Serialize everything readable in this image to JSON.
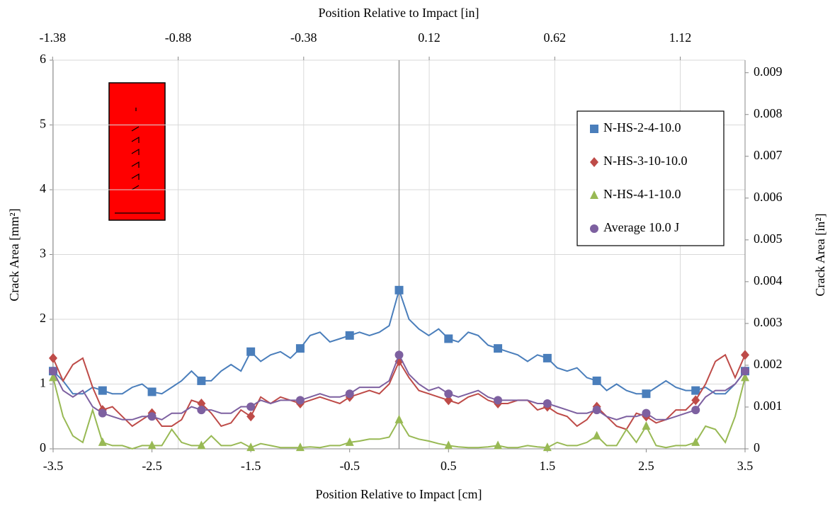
{
  "chart_data": {
    "type": "line",
    "x_label": "Position Relative to Impact [cm]",
    "x2_label": "Position Relative to Impact [in]",
    "y_label": "Crack Area [mm²]",
    "y2_label": "Crack Area [in²]",
    "x": [
      -3.5,
      -3.4,
      -3.3,
      -3.2,
      -3.1,
      -3.0,
      -2.9,
      -2.8,
      -2.7,
      -2.6,
      -2.5,
      -2.4,
      -2.3,
      -2.2,
      -2.1,
      -2.0,
      -1.9,
      -1.8,
      -1.7,
      -1.6,
      -1.5,
      -1.4,
      -1.3,
      -1.2,
      -1.1,
      -1.0,
      -0.9,
      -0.8,
      -0.7,
      -0.6,
      -0.5,
      -0.4,
      -0.3,
      -0.2,
      -0.1,
      0,
      0.1,
      0.2,
      0.3,
      0.4,
      0.5,
      0.6,
      0.7,
      0.8,
      0.9,
      1.0,
      1.1,
      1.2,
      1.3,
      1.4,
      1.5,
      1.6,
      1.7,
      1.8,
      1.9,
      2.0,
      2.1,
      2.2,
      2.3,
      2.4,
      2.5,
      2.6,
      2.7,
      2.8,
      2.9,
      3.0,
      3.1,
      3.2,
      3.3,
      3.4,
      3.5
    ],
    "series": [
      {
        "name": "N-HS-2-4-10.0",
        "color": "#4a7ebb",
        "marker": "square",
        "values": [
          1.2,
          1.05,
          0.85,
          0.85,
          0.95,
          0.9,
          0.85,
          0.85,
          0.95,
          1.0,
          0.88,
          0.85,
          0.95,
          1.05,
          1.2,
          1.05,
          1.05,
          1.2,
          1.3,
          1.2,
          1.5,
          1.35,
          1.45,
          1.5,
          1.4,
          1.55,
          1.75,
          1.8,
          1.65,
          1.7,
          1.75,
          1.8,
          1.75,
          1.8,
          1.9,
          2.45,
          2.0,
          1.85,
          1.75,
          1.85,
          1.7,
          1.65,
          1.8,
          1.75,
          1.6,
          1.55,
          1.5,
          1.45,
          1.35,
          1.45,
          1.4,
          1.25,
          1.2,
          1.25,
          1.1,
          1.05,
          0.9,
          1.0,
          0.9,
          0.85,
          0.85,
          0.95,
          1.05,
          0.95,
          0.9,
          0.9,
          0.95,
          0.85,
          0.85,
          1.0,
          1.2
        ]
      },
      {
        "name": "N-HS-3-10-10.0",
        "color": "#be4b48",
        "marker": "diamond",
        "values": [
          1.4,
          1.05,
          1.3,
          1.4,
          0.95,
          0.6,
          0.65,
          0.5,
          0.35,
          0.45,
          0.55,
          0.35,
          0.35,
          0.45,
          0.75,
          0.7,
          0.55,
          0.35,
          0.4,
          0.6,
          0.5,
          0.8,
          0.7,
          0.8,
          0.75,
          0.7,
          0.75,
          0.8,
          0.75,
          0.7,
          0.8,
          0.85,
          0.9,
          0.85,
          1.0,
          1.35,
          1.1,
          0.9,
          0.85,
          0.8,
          0.75,
          0.7,
          0.8,
          0.85,
          0.75,
          0.7,
          0.7,
          0.75,
          0.75,
          0.6,
          0.65,
          0.55,
          0.5,
          0.35,
          0.45,
          0.65,
          0.5,
          0.35,
          0.3,
          0.55,
          0.5,
          0.4,
          0.45,
          0.6,
          0.6,
          0.75,
          1.0,
          1.35,
          1.45,
          1.1,
          1.45
        ]
      },
      {
        "name": "N-HS-4-1-10.0",
        "color": "#98b954",
        "marker": "triangle",
        "values": [
          1.1,
          0.5,
          0.2,
          0.1,
          0.6,
          0.1,
          0.05,
          0.05,
          0,
          0.05,
          0.05,
          0.05,
          0.3,
          0.1,
          0.05,
          0.05,
          0.2,
          0.05,
          0.05,
          0.1,
          0.02,
          0.08,
          0.05,
          0.02,
          0.02,
          0.02,
          0.03,
          0.02,
          0.05,
          0.05,
          0.1,
          0.12,
          0.15,
          0.15,
          0.18,
          0.45,
          0.2,
          0.15,
          0.12,
          0.08,
          0.05,
          0.03,
          0.02,
          0.02,
          0.03,
          0.05,
          0.02,
          0.02,
          0.05,
          0.03,
          0.02,
          0.1,
          0.05,
          0.05,
          0.1,
          0.2,
          0.05,
          0.05,
          0.3,
          0.1,
          0.35,
          0.05,
          0.02,
          0.05,
          0.05,
          0.1,
          0.35,
          0.3,
          0.1,
          0.5,
          1.1
        ]
      },
      {
        "name": "Average 10.0 J",
        "color": "#7d60a0",
        "marker": "circle",
        "values": [
          1.2,
          0.9,
          0.8,
          0.9,
          0.65,
          0.55,
          0.5,
          0.45,
          0.45,
          0.5,
          0.5,
          0.45,
          0.55,
          0.55,
          0.65,
          0.6,
          0.6,
          0.55,
          0.55,
          0.65,
          0.65,
          0.75,
          0.7,
          0.75,
          0.75,
          0.75,
          0.8,
          0.85,
          0.8,
          0.8,
          0.85,
          0.95,
          0.95,
          0.95,
          1.05,
          1.45,
          1.15,
          1.0,
          0.9,
          0.95,
          0.85,
          0.8,
          0.85,
          0.9,
          0.8,
          0.75,
          0.75,
          0.75,
          0.75,
          0.7,
          0.7,
          0.65,
          0.6,
          0.55,
          0.55,
          0.6,
          0.5,
          0.45,
          0.5,
          0.5,
          0.55,
          0.45,
          0.45,
          0.5,
          0.55,
          0.6,
          0.8,
          0.9,
          0.9,
          1.0,
          1.2
        ]
      }
    ],
    "xlim": [
      -3.5,
      3.5
    ],
    "xticks": [
      -3.5,
      -2.5,
      -1.5,
      -0.5,
      0.5,
      1.5,
      2.5,
      3.5
    ],
    "x2lim": [
      -1.378,
      1.378
    ],
    "x2ticks": [
      -1.38,
      -0.88,
      -0.38,
      0.12,
      0.62,
      1.12
    ],
    "ylim": [
      0,
      6
    ],
    "yticks": [
      0,
      1,
      2,
      3,
      4,
      5,
      6
    ],
    "y2lim": [
      0,
      0.0093
    ],
    "y2ticks": [
      0,
      0.001,
      0.002,
      0.003,
      0.004,
      0.005,
      0.006,
      0.007,
      0.008,
      0.009
    ],
    "grid": true,
    "legend": "upper right"
  }
}
